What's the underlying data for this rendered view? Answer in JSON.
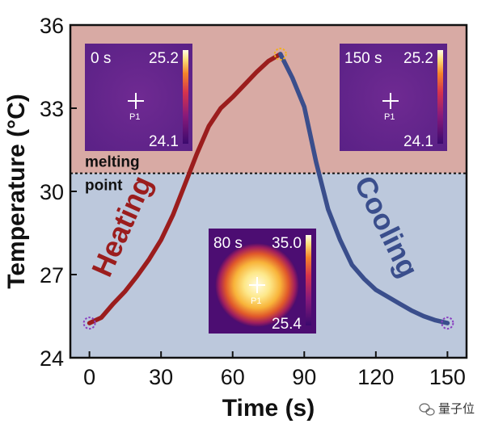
{
  "chart_data": {
    "type": "line",
    "xlabel": "Time (s)",
    "ylabel": "Temperature (°C)",
    "xlim": [
      -8,
      158
    ],
    "ylim": [
      24,
      36
    ],
    "xticks": [
      0,
      30,
      60,
      90,
      120,
      150
    ],
    "xtick_labels": [
      "0",
      "30",
      "60",
      "90",
      "120",
      "150"
    ],
    "yticks": [
      24,
      27,
      30,
      33,
      36
    ],
    "ytick_labels": [
      "24",
      "27",
      "30",
      "33",
      "36"
    ],
    "melting_point": {
      "y": 30.65,
      "label_line1": "melting",
      "label_line2": "point"
    },
    "series": [
      {
        "name": "Heating",
        "color": "#9b1d1d",
        "x": [
          0,
          5,
          10,
          15,
          20,
          25,
          30,
          35,
          40,
          45,
          50,
          55,
          60,
          65,
          70,
          75,
          80
        ],
        "y": [
          25.25,
          25.45,
          25.95,
          26.4,
          26.95,
          27.55,
          28.25,
          29.15,
          30.25,
          31.35,
          32.35,
          33.0,
          33.4,
          33.85,
          34.3,
          34.7,
          34.95
        ]
      },
      {
        "name": "Cooling",
        "color": "#3a4e8c",
        "x": [
          80,
          85,
          90,
          95,
          100,
          105,
          110,
          115,
          120,
          125,
          130,
          135,
          140,
          145,
          150
        ],
        "y": [
          34.95,
          34.1,
          33.05,
          31.05,
          29.35,
          28.25,
          27.35,
          26.85,
          26.45,
          26.2,
          25.95,
          25.7,
          25.5,
          25.35,
          25.25
        ]
      }
    ],
    "markers": [
      {
        "name": "start",
        "x": 0,
        "y": 25.25,
        "color": "#8a3fc0"
      },
      {
        "name": "peak",
        "x": 80,
        "y": 34.95,
        "color": "#f2b01e"
      },
      {
        "name": "end",
        "x": 150,
        "y": 25.25,
        "color": "#8a3fc0"
      }
    ],
    "insets": [
      {
        "name": "0s",
        "time": "0 s",
        "max": "25.2",
        "min": "24.1",
        "point": "P1",
        "hot": false
      },
      {
        "name": "150s",
        "time": "150 s",
        "max": "25.2",
        "min": "24.1",
        "point": "P1",
        "hot": false
      },
      {
        "name": "80s",
        "time": "80 s",
        "max": "35.0",
        "min": "25.4",
        "point": "P1",
        "hot": true
      }
    ]
  },
  "watermark": "量子位"
}
